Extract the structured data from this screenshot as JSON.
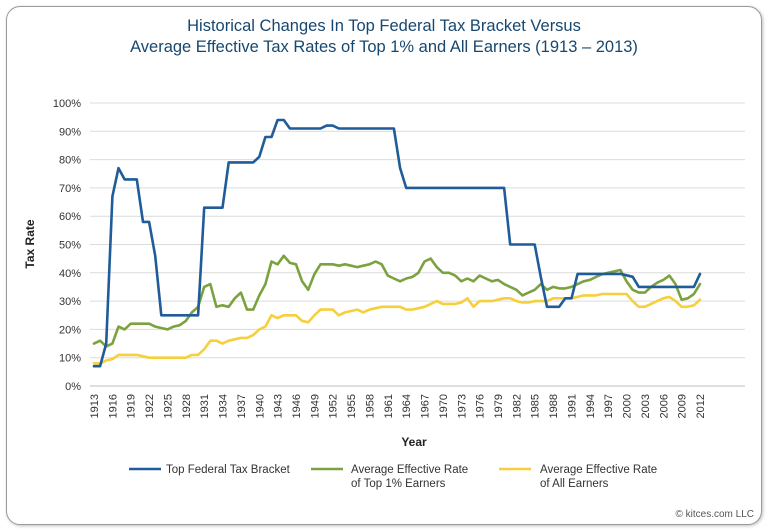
{
  "chart_data": {
    "type": "line",
    "title": [
      "Historical Changes In Top Federal Tax Bracket Versus",
      "Average Effective Tax Rates of Top 1% and All Earners (1913 – 2013)"
    ],
    "xlabel": "Year",
    "ylabel": "Tax Rate",
    "xlim": [
      1913,
      2012
    ],
    "ylim": [
      0,
      100
    ],
    "yticks": [
      "0%",
      "10%",
      "20%",
      "30%",
      "40%",
      "50%",
      "60%",
      "70%",
      "80%",
      "90%",
      "100%"
    ],
    "xticks": [
      "1913",
      "1916",
      "1919",
      "1922",
      "1925",
      "1928",
      "1931",
      "1934",
      "1937",
      "1940",
      "1943",
      "1946",
      "1949",
      "1952",
      "1955",
      "1958",
      "1961",
      "1964",
      "1967",
      "1970",
      "1973",
      "1976",
      "1979",
      "1982",
      "1985",
      "1988",
      "1991",
      "1994",
      "1997",
      "2000",
      "2003",
      "2006",
      "2009",
      "2012"
    ],
    "series": [
      {
        "name": "Top Federal Tax Bracket",
        "color": "#1f5c99",
        "points": [
          [
            1913,
            7
          ],
          [
            1914,
            7
          ],
          [
            1915,
            15
          ],
          [
            1916,
            67
          ],
          [
            1917,
            77
          ],
          [
            1918,
            73
          ],
          [
            1919,
            73
          ],
          [
            1920,
            73
          ],
          [
            1921,
            58
          ],
          [
            1922,
            58
          ],
          [
            1923,
            46
          ],
          [
            1924,
            25
          ],
          [
            1925,
            25
          ],
          [
            1926,
            25
          ],
          [
            1927,
            25
          ],
          [
            1928,
            25
          ],
          [
            1929,
            25
          ],
          [
            1930,
            25
          ],
          [
            1931,
            63
          ],
          [
            1932,
            63
          ],
          [
            1933,
            63
          ],
          [
            1934,
            63
          ],
          [
            1935,
            79
          ],
          [
            1936,
            79
          ],
          [
            1937,
            79
          ],
          [
            1938,
            79
          ],
          [
            1939,
            79
          ],
          [
            1940,
            81
          ],
          [
            1941,
            88
          ],
          [
            1942,
            88
          ],
          [
            1943,
            94
          ],
          [
            1944,
            94
          ],
          [
            1945,
            91
          ],
          [
            1946,
            91
          ],
          [
            1947,
            91
          ],
          [
            1948,
            91
          ],
          [
            1949,
            91
          ],
          [
            1950,
            91
          ],
          [
            1951,
            92
          ],
          [
            1952,
            92
          ],
          [
            1953,
            91
          ],
          [
            1954,
            91
          ],
          [
            1955,
            91
          ],
          [
            1956,
            91
          ],
          [
            1957,
            91
          ],
          [
            1958,
            91
          ],
          [
            1959,
            91
          ],
          [
            1960,
            91
          ],
          [
            1961,
            91
          ],
          [
            1962,
            91
          ],
          [
            1963,
            77
          ],
          [
            1964,
            70
          ],
          [
            1965,
            70
          ],
          [
            1966,
            70
          ],
          [
            1967,
            70
          ],
          [
            1968,
            70
          ],
          [
            1969,
            70
          ],
          [
            1970,
            70
          ],
          [
            1971,
            70
          ],
          [
            1972,
            70
          ],
          [
            1973,
            70
          ],
          [
            1974,
            70
          ],
          [
            1975,
            70
          ],
          [
            1976,
            70
          ],
          [
            1977,
            70
          ],
          [
            1978,
            70
          ],
          [
            1979,
            70
          ],
          [
            1980,
            70
          ],
          [
            1981,
            50
          ],
          [
            1982,
            50
          ],
          [
            1983,
            50
          ],
          [
            1984,
            50
          ],
          [
            1985,
            50
          ],
          [
            1986,
            38.5
          ],
          [
            1987,
            28
          ],
          [
            1988,
            28
          ],
          [
            1989,
            28
          ],
          [
            1990,
            31
          ],
          [
            1991,
            31
          ],
          [
            1992,
            39.6
          ],
          [
            1993,
            39.6
          ],
          [
            1994,
            39.6
          ],
          [
            1995,
            39.6
          ],
          [
            1996,
            39.6
          ],
          [
            1997,
            39.6
          ],
          [
            1998,
            39.6
          ],
          [
            1999,
            39.6
          ],
          [
            2000,
            39.1
          ],
          [
            2001,
            38.6
          ],
          [
            2002,
            35
          ],
          [
            2003,
            35
          ],
          [
            2004,
            35
          ],
          [
            2005,
            35
          ],
          [
            2006,
            35
          ],
          [
            2007,
            35
          ],
          [
            2008,
            35
          ],
          [
            2009,
            35
          ],
          [
            2010,
            35
          ],
          [
            2011,
            35
          ],
          [
            2012,
            39.6
          ]
        ]
      },
      {
        "name": "Average Effective Rate of Top 1% Earners",
        "legend_lines": [
          "Average Effective Rate",
          "of Top 1% Earners"
        ],
        "color": "#7ba23f",
        "points": [
          [
            1913,
            15
          ],
          [
            1914,
            16
          ],
          [
            1915,
            14
          ],
          [
            1916,
            15
          ],
          [
            1917,
            21
          ],
          [
            1918,
            20
          ],
          [
            1919,
            22
          ],
          [
            1920,
            22
          ],
          [
            1921,
            22
          ],
          [
            1922,
            22
          ],
          [
            1923,
            21
          ],
          [
            1924,
            20.5
          ],
          [
            1925,
            20
          ],
          [
            1926,
            21
          ],
          [
            1927,
            21.5
          ],
          [
            1928,
            23
          ],
          [
            1929,
            26
          ],
          [
            1930,
            28
          ],
          [
            1931,
            35
          ],
          [
            1932,
            36
          ],
          [
            1933,
            28
          ],
          [
            1934,
            28.5
          ],
          [
            1935,
            28
          ],
          [
            1936,
            31
          ],
          [
            1937,
            33
          ],
          [
            1938,
            27
          ],
          [
            1939,
            27
          ],
          [
            1940,
            32
          ],
          [
            1941,
            36
          ],
          [
            1942,
            44
          ],
          [
            1943,
            43
          ],
          [
            1944,
            46
          ],
          [
            1945,
            43.5
          ],
          [
            1946,
            43
          ],
          [
            1947,
            37
          ],
          [
            1948,
            34
          ],
          [
            1949,
            39.5
          ],
          [
            1950,
            43
          ],
          [
            1951,
            43
          ],
          [
            1952,
            43
          ],
          [
            1953,
            42.5
          ],
          [
            1954,
            43
          ],
          [
            1955,
            42.5
          ],
          [
            1956,
            42
          ],
          [
            1957,
            42.5
          ],
          [
            1958,
            43
          ],
          [
            1959,
            44
          ],
          [
            1960,
            43
          ],
          [
            1961,
            39
          ],
          [
            1962,
            38
          ],
          [
            1963,
            37
          ],
          [
            1964,
            38
          ],
          [
            1965,
            38.5
          ],
          [
            1966,
            40
          ],
          [
            1967,
            44
          ],
          [
            1968,
            45
          ],
          [
            1969,
            42
          ],
          [
            1970,
            40
          ],
          [
            1971,
            40
          ],
          [
            1972,
            39
          ],
          [
            1973,
            37
          ],
          [
            1974,
            38
          ],
          [
            1975,
            37
          ],
          [
            1976,
            39
          ],
          [
            1977,
            38
          ],
          [
            1978,
            37
          ],
          [
            1979,
            37.5
          ],
          [
            1980,
            36
          ],
          [
            1981,
            35
          ],
          [
            1982,
            34
          ],
          [
            1983,
            32
          ],
          [
            1984,
            33
          ],
          [
            1985,
            34
          ],
          [
            1986,
            36
          ],
          [
            1987,
            34
          ],
          [
            1988,
            35
          ],
          [
            1989,
            34.5
          ],
          [
            1990,
            34.5
          ],
          [
            1991,
            35
          ],
          [
            1992,
            36
          ],
          [
            1993,
            37
          ],
          [
            1994,
            37.5
          ],
          [
            1995,
            38.5
          ],
          [
            1996,
            39.5
          ],
          [
            1997,
            40
          ],
          [
            1998,
            40.5
          ],
          [
            1999,
            41
          ],
          [
            2000,
            37
          ],
          [
            2001,
            34
          ],
          [
            2002,
            33
          ],
          [
            2003,
            33
          ],
          [
            2004,
            35
          ],
          [
            2005,
            36.5
          ],
          [
            2006,
            37.5
          ],
          [
            2007,
            39
          ],
          [
            2008,
            36
          ],
          [
            2009,
            30.5
          ],
          [
            2010,
            31
          ],
          [
            2011,
            32.5
          ],
          [
            2012,
            36
          ]
        ]
      },
      {
        "name": "Average Effective Rate of All Earners",
        "legend_lines": [
          "Average Effective Rate",
          "of All Earners"
        ],
        "color": "#f5cf3c",
        "points": [
          [
            1913,
            8
          ],
          [
            1914,
            8
          ],
          [
            1915,
            9
          ],
          [
            1916,
            9.5
          ],
          [
            1917,
            11
          ],
          [
            1918,
            11
          ],
          [
            1919,
            11
          ],
          [
            1920,
            11
          ],
          [
            1921,
            10.5
          ],
          [
            1922,
            10
          ],
          [
            1923,
            10
          ],
          [
            1924,
            10
          ],
          [
            1925,
            10
          ],
          [
            1926,
            10
          ],
          [
            1927,
            10
          ],
          [
            1928,
            10
          ],
          [
            1929,
            11
          ],
          [
            1930,
            11
          ],
          [
            1931,
            13
          ],
          [
            1932,
            16
          ],
          [
            1933,
            16
          ],
          [
            1934,
            15
          ],
          [
            1935,
            16
          ],
          [
            1936,
            16.5
          ],
          [
            1937,
            17
          ],
          [
            1938,
            17
          ],
          [
            1939,
            18
          ],
          [
            1940,
            20
          ],
          [
            1941,
            21
          ],
          [
            1942,
            25
          ],
          [
            1943,
            24
          ],
          [
            1944,
            25
          ],
          [
            1945,
            25
          ],
          [
            1946,
            25
          ],
          [
            1947,
            23
          ],
          [
            1948,
            22.5
          ],
          [
            1949,
            25
          ],
          [
            1950,
            27
          ],
          [
            1951,
            27
          ],
          [
            1952,
            27
          ],
          [
            1953,
            25
          ],
          [
            1954,
            26
          ],
          [
            1955,
            26.5
          ],
          [
            1956,
            27
          ],
          [
            1957,
            26
          ],
          [
            1958,
            27
          ],
          [
            1959,
            27.5
          ],
          [
            1960,
            28
          ],
          [
            1961,
            28
          ],
          [
            1962,
            28
          ],
          [
            1963,
            28
          ],
          [
            1964,
            27
          ],
          [
            1965,
            27
          ],
          [
            1966,
            27.5
          ],
          [
            1967,
            28
          ],
          [
            1968,
            29
          ],
          [
            1969,
            30
          ],
          [
            1970,
            29
          ],
          [
            1971,
            29
          ],
          [
            1972,
            29
          ],
          [
            1973,
            29.5
          ],
          [
            1974,
            31
          ],
          [
            1975,
            28
          ],
          [
            1976,
            30
          ],
          [
            1977,
            30
          ],
          [
            1978,
            30
          ],
          [
            1979,
            30.5
          ],
          [
            1980,
            31
          ],
          [
            1981,
            31
          ],
          [
            1982,
            30
          ],
          [
            1983,
            29.5
          ],
          [
            1984,
            29.5
          ],
          [
            1985,
            30
          ],
          [
            1986,
            30
          ],
          [
            1987,
            30
          ],
          [
            1988,
            31
          ],
          [
            1989,
            31
          ],
          [
            1990,
            31
          ],
          [
            1991,
            31
          ],
          [
            1992,
            31.5
          ],
          [
            1993,
            32
          ],
          [
            1994,
            32
          ],
          [
            1995,
            32
          ],
          [
            1996,
            32.5
          ],
          [
            1997,
            32.5
          ],
          [
            1998,
            32.5
          ],
          [
            1999,
            32.5
          ],
          [
            2000,
            32.5
          ],
          [
            2001,
            30
          ],
          [
            2002,
            28
          ],
          [
            2003,
            28
          ],
          [
            2004,
            29
          ],
          [
            2005,
            30
          ],
          [
            2006,
            31
          ],
          [
            2007,
            31.5
          ],
          [
            2008,
            30
          ],
          [
            2009,
            28
          ],
          [
            2010,
            28
          ],
          [
            2011,
            28.5
          ],
          [
            2012,
            30.5
          ]
        ]
      }
    ],
    "grid": "horizontal",
    "legend": "bottom"
  },
  "credit": "© kitces.com LLC"
}
